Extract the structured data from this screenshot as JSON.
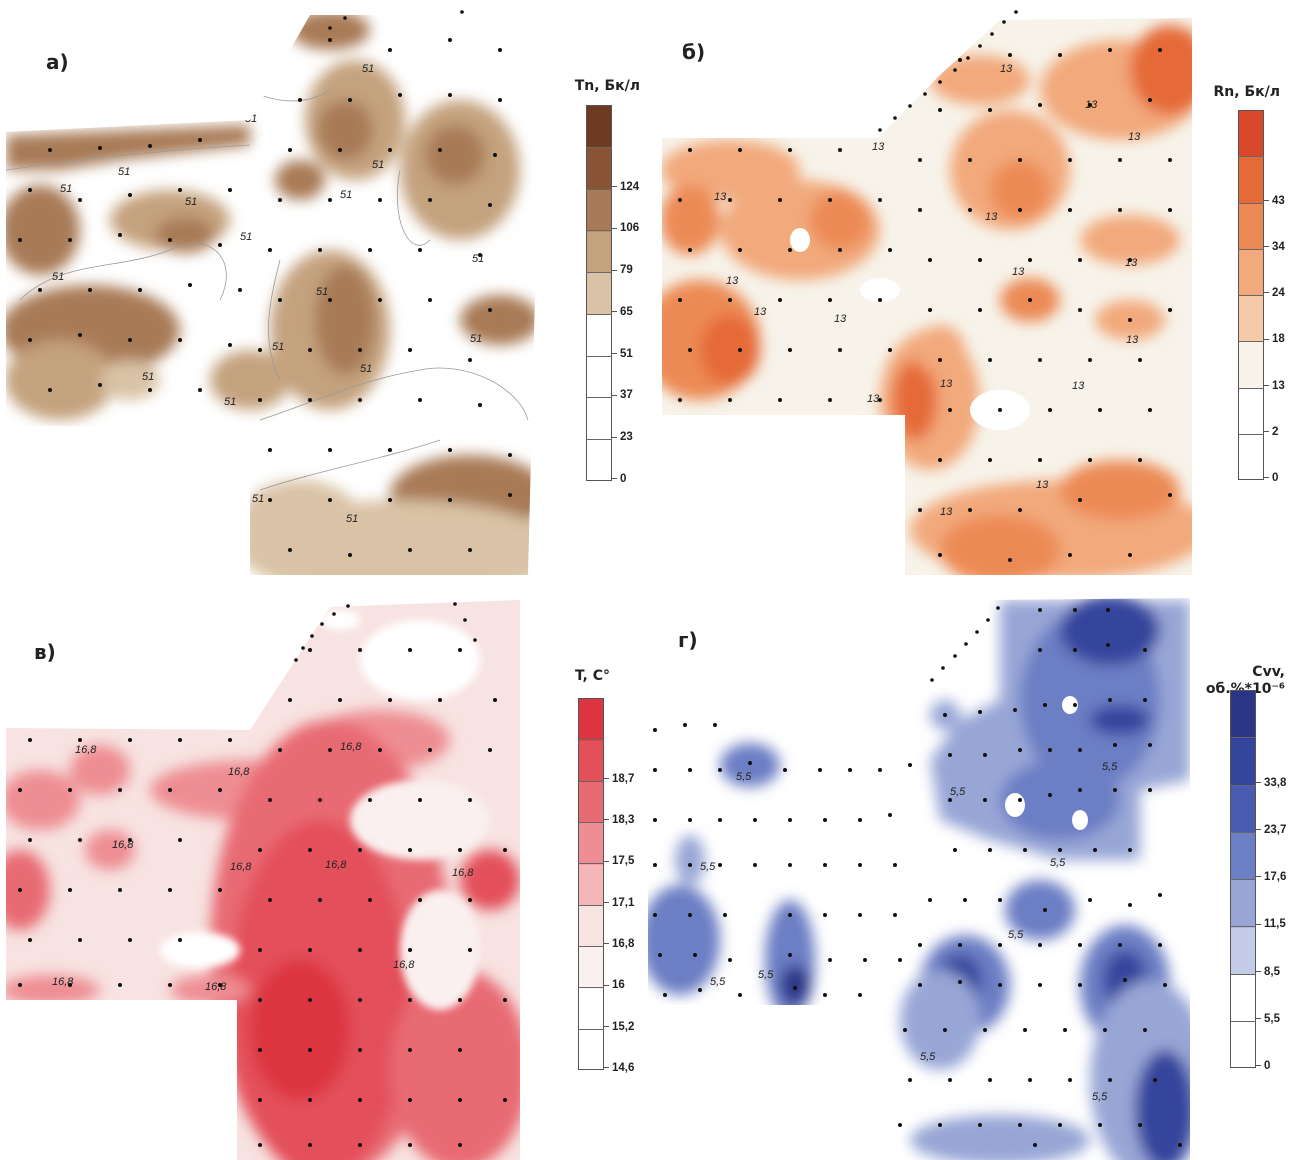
{
  "panels": [
    {
      "id": "a",
      "label": "а)",
      "legend_title": "Tn, Бк/л",
      "legend_ticks": [
        "124",
        "106",
        "79",
        "65",
        "51",
        "37",
        "23",
        "0"
      ],
      "legend_colors": [
        "#6e3a22",
        "#8a5333",
        "#a87a57",
        "#c4a27e",
        "#d9c2a5",
        "#ffffff",
        "#ffffff",
        "#ffffff",
        "#ffffff"
      ],
      "contour_label": "51"
    },
    {
      "id": "b",
      "label": "б)",
      "legend_title": "Rn, Бк/л",
      "legend_ticks": [
        "43",
        "34",
        "24",
        "18",
        "13",
        "2",
        "0"
      ],
      "legend_colors": [
        "#d9472a",
        "#e56a37",
        "#ec8a55",
        "#f2a97c",
        "#f6c9a8",
        "#f7f3ea",
        "#ffffff",
        "#ffffff"
      ],
      "contour_label": "13"
    },
    {
      "id": "c",
      "label": "в)",
      "legend_title": "T, С°",
      "legend_ticks": [
        "18,7",
        "18,3",
        "17,5",
        "17,1",
        "16,8",
        "16",
        "15,2",
        "14,6"
      ],
      "legend_colors": [
        "#dc3441",
        "#e3505a",
        "#e86a73",
        "#ee8d93",
        "#f4b6b9",
        "#f7e3e1",
        "#faf0ef",
        "#ffffff",
        "#ffffff"
      ],
      "contour_label": "16,8"
    },
    {
      "id": "d",
      "label": "г)",
      "legend_title_line1": "Cvv,",
      "legend_title_line2": "об.%*10⁻⁶",
      "legend_ticks": [
        "33,8",
        "23,7",
        "17,6",
        "11,5",
        "8,5",
        "5,5",
        "0"
      ],
      "legend_colors": [
        "#2b3586",
        "#36459c",
        "#4b5cb0",
        "#6c7ec4",
        "#98a6d6",
        "#c4cbe6",
        "#ffffff",
        "#ffffff"
      ],
      "contour_label": "5,5"
    }
  ]
}
